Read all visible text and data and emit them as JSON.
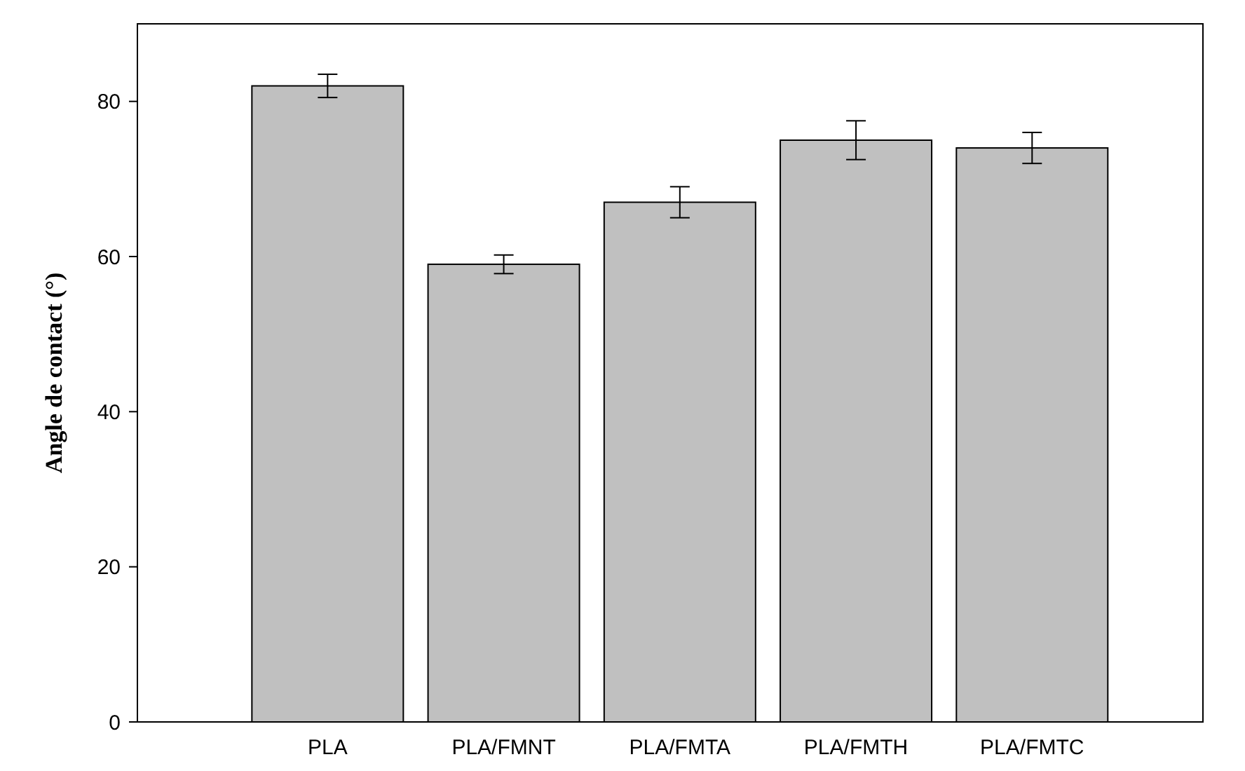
{
  "chart_data": {
    "type": "bar",
    "ylabel": "Angle de contact (°)",
    "categories": [
      "PLA",
      "PLA/FMNT",
      "PLA/FMTA",
      "PLA/FMTH",
      "PLA/FMTC"
    ],
    "values": [
      82,
      59,
      67,
      75,
      74
    ],
    "errors": [
      1.5,
      1.2,
      2,
      2.5,
      2
    ],
    "color": "#c0c0c0",
    "ylim": [
      0,
      90
    ],
    "yticks": [
      0,
      20,
      40,
      60,
      80
    ]
  }
}
